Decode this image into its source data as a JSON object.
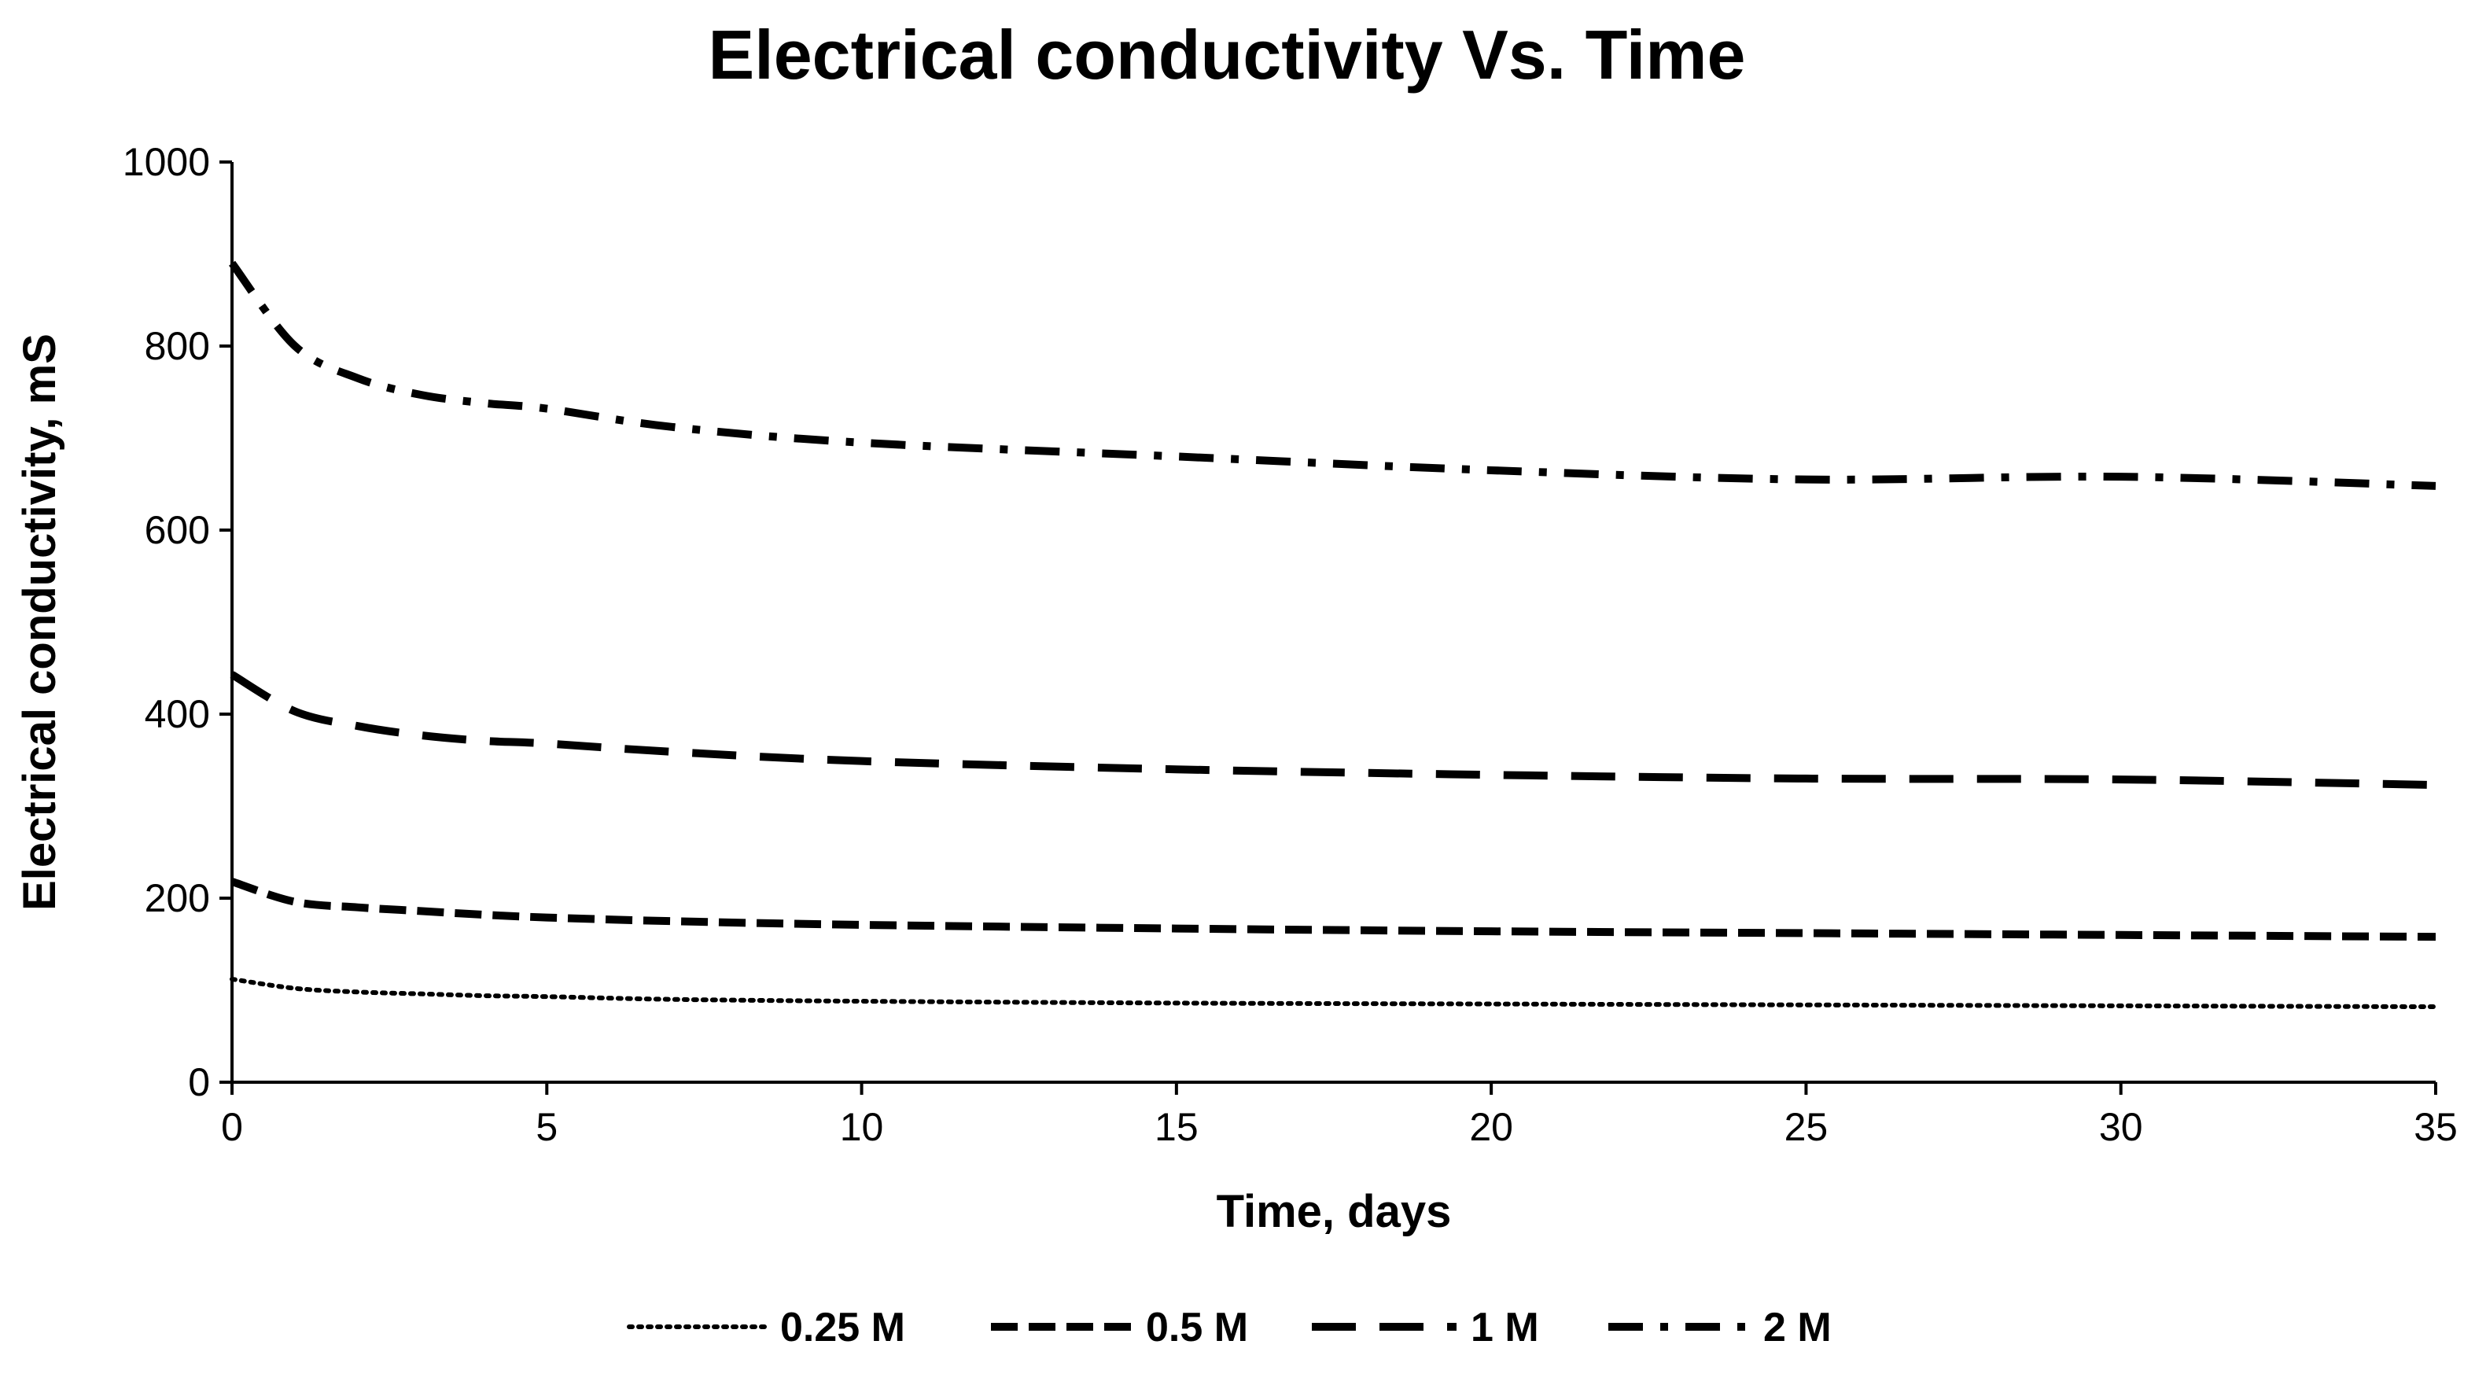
{
  "chart_data": {
    "type": "line",
    "title": "Electrical conductivity Vs. Time",
    "xlabel": "Time, days",
    "ylabel": "Electrical conductivity, mS",
    "xlim": [
      0,
      35
    ],
    "ylim": [
      0,
      1000
    ],
    "xticks": [
      0,
      5,
      10,
      15,
      20,
      25,
      30,
      35
    ],
    "yticks": [
      0,
      200,
      400,
      600,
      800,
      1000
    ],
    "xtick_labels": [
      "0",
      "5",
      "10",
      "15",
      "20",
      "25",
      "30",
      "35"
    ],
    "ytick_labels": [
      "0",
      "200",
      "400",
      "600",
      "800",
      "1000"
    ],
    "grid": false,
    "legend_position": "bottom",
    "line_color": "#000000",
    "series": [
      {
        "name": "0.25 M",
        "style": "dotted",
        "x": [
          0,
          1,
          2,
          3,
          4,
          5,
          7,
          10,
          15,
          20,
          25,
          30,
          35
        ],
        "values": [
          112,
          102,
          98,
          96,
          94,
          93,
          90,
          88,
          86,
          85,
          84,
          83,
          82
        ]
      },
      {
        "name": "0.5 M",
        "style": "dashed",
        "x": [
          0,
          1,
          2,
          3,
          4,
          5,
          7,
          10,
          15,
          20,
          25,
          30,
          35
        ],
        "values": [
          218,
          196,
          190,
          186,
          182,
          179,
          175,
          171,
          167,
          164,
          162,
          160,
          158
        ]
      },
      {
        "name": "1 M",
        "style": "long-dashed",
        "x": [
          0,
          1,
          2,
          3,
          4,
          5,
          7,
          10,
          15,
          20,
          25,
          30,
          35
        ],
        "values": [
          443,
          403,
          387,
          377,
          371,
          368,
          359,
          349,
          340,
          334,
          330,
          329,
          323
        ]
      },
      {
        "name": "2 M",
        "style": "dash-dot",
        "x": [
          0,
          1,
          2,
          3,
          4,
          5,
          7,
          10,
          15,
          20,
          25,
          30,
          35
        ],
        "values": [
          890,
          800,
          765,
          747,
          738,
          732,
          712,
          695,
          680,
          665,
          655,
          658,
          648
        ]
      }
    ]
  }
}
